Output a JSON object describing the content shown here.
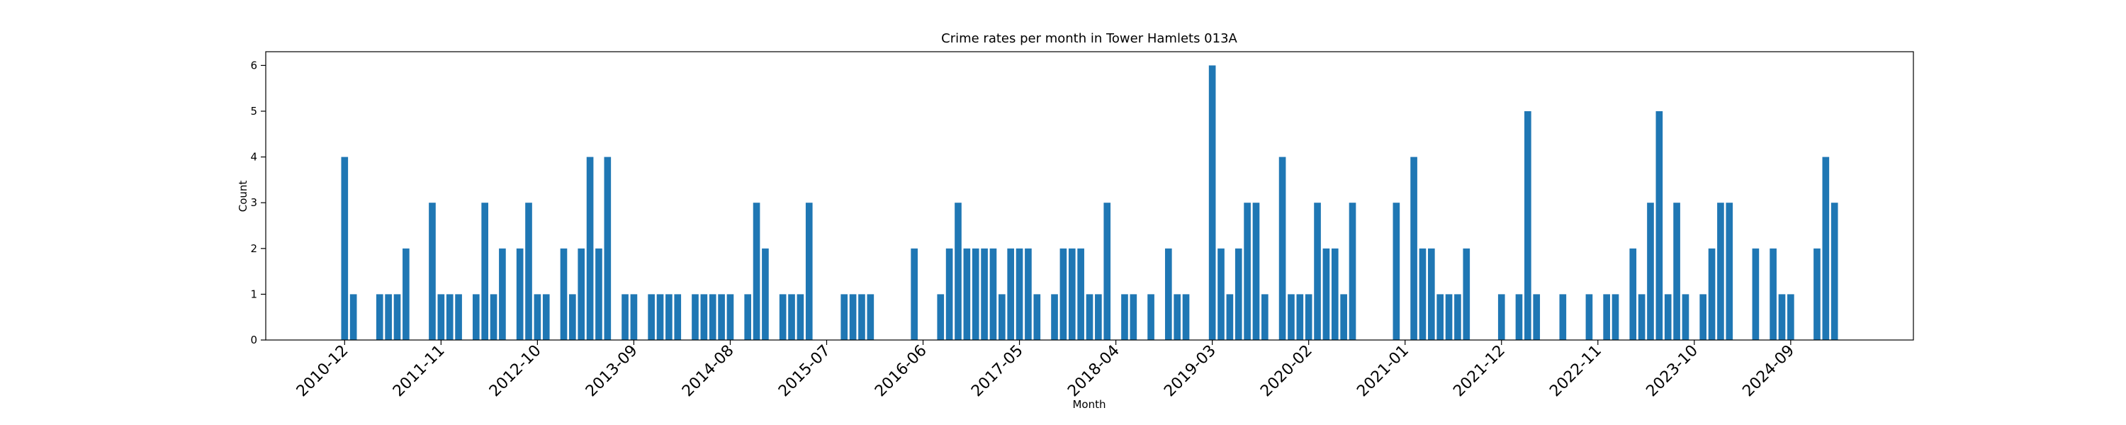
{
  "chart_data": {
    "type": "bar",
    "title": "Crime rates per month in Tower Hamlets 013A",
    "xlabel": "Month",
    "ylabel": "Count",
    "color": "#1f77b4",
    "x": [
      "2010-12",
      "2011-01",
      "2011-04",
      "2011-05",
      "2011-06",
      "2011-07",
      "2011-10",
      "2011-11",
      "2011-12",
      "2012-01",
      "2012-03",
      "2012-04",
      "2012-05",
      "2012-06",
      "2012-08",
      "2012-09",
      "2012-10",
      "2012-11",
      "2013-01",
      "2013-02",
      "2013-03",
      "2013-04",
      "2013-05",
      "2013-06",
      "2013-08",
      "2013-09",
      "2013-11",
      "2013-12",
      "2014-01",
      "2014-02",
      "2014-04",
      "2014-05",
      "2014-06",
      "2014-07",
      "2014-08",
      "2014-10",
      "2014-11",
      "2014-12",
      "2015-02",
      "2015-03",
      "2015-04",
      "2015-05",
      "2015-09",
      "2015-10",
      "2015-11",
      "2015-12",
      "2016-05",
      "2016-08",
      "2016-09",
      "2016-10",
      "2016-11",
      "2016-12",
      "2017-01",
      "2017-02",
      "2017-03",
      "2017-04",
      "2017-05",
      "2017-06",
      "2017-07",
      "2017-09",
      "2017-10",
      "2017-11",
      "2017-12",
      "2018-01",
      "2018-02",
      "2018-03",
      "2018-05",
      "2018-06",
      "2018-08",
      "2018-10",
      "2018-11",
      "2018-12",
      "2019-03",
      "2019-04",
      "2019-05",
      "2019-06",
      "2019-07",
      "2019-08",
      "2019-09",
      "2019-11",
      "2019-12",
      "2020-01",
      "2020-02",
      "2020-03",
      "2020-04",
      "2020-05",
      "2020-06",
      "2020-07",
      "2020-12",
      "2021-02",
      "2021-03",
      "2021-04",
      "2021-05",
      "2021-06",
      "2021-07",
      "2021-08",
      "2021-12",
      "2022-02",
      "2022-03",
      "2022-04",
      "2022-07",
      "2022-10",
      "2022-12",
      "2023-01",
      "2023-03",
      "2023-04",
      "2023-05",
      "2023-06",
      "2023-07",
      "2023-08",
      "2023-09",
      "2023-11",
      "2023-12",
      "2024-01",
      "2024-02",
      "2024-05",
      "2024-07",
      "2024-08",
      "2024-09",
      "2024-12",
      "2025-01",
      "2025-02"
    ],
    "values": [
      4,
      1,
      1,
      1,
      1,
      2,
      3,
      1,
      1,
      1,
      1,
      3,
      1,
      2,
      2,
      3,
      1,
      1,
      2,
      1,
      2,
      4,
      2,
      4,
      1,
      1,
      1,
      1,
      1,
      1,
      1,
      1,
      1,
      1,
      1,
      1,
      3,
      2,
      1,
      1,
      1,
      3,
      1,
      1,
      1,
      1,
      2,
      1,
      2,
      3,
      2,
      2,
      2,
      2,
      1,
      2,
      2,
      2,
      1,
      1,
      2,
      2,
      2,
      1,
      1,
      3,
      1,
      1,
      1,
      2,
      1,
      1,
      6,
      2,
      1,
      2,
      3,
      3,
      1,
      4,
      1,
      1,
      1,
      3,
      2,
      2,
      1,
      3,
      3,
      4,
      2,
      2,
      1,
      1,
      1,
      2,
      1,
      1,
      5,
      1,
      1,
      1,
      1,
      1,
      2,
      1,
      3,
      5,
      1,
      3,
      1,
      1,
      2,
      3,
      3,
      2,
      2,
      1,
      1,
      2,
      4,
      3
    ],
    "xlim": [
      "2010-03",
      "2025-11"
    ],
    "xticks": [
      "2010-12",
      "2011-11",
      "2012-10",
      "2013-09",
      "2014-08",
      "2015-07",
      "2016-06",
      "2017-05",
      "2018-04",
      "2019-03",
      "2020-02",
      "2021-01",
      "2021-12",
      "2022-11",
      "2023-10",
      "2024-09"
    ],
    "ylim": [
      0,
      6.3
    ],
    "yticks": [
      0,
      1,
      2,
      3,
      4,
      5,
      6
    ]
  }
}
